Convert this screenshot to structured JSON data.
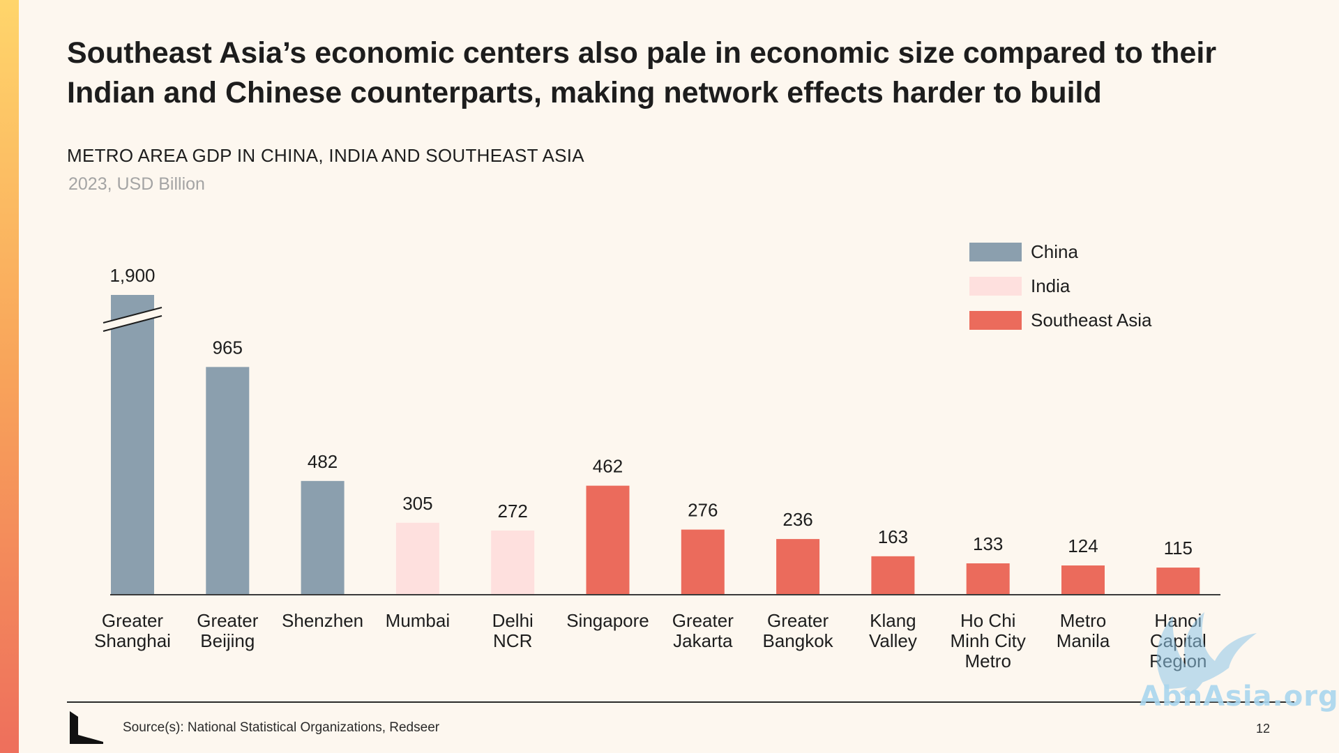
{
  "slide": {
    "title": "Southeast Asia’s economic centers also pale in economic size compared to their Indian and Chinese counterparts, making network effects harder to build",
    "source": "Source(s): National Statistical Organizations, Redseer",
    "page_number": "12"
  },
  "watermark": {
    "text": "AbnAsia.org"
  },
  "colors": {
    "china": "#8b9fae",
    "india": "#fee0de",
    "southeast_asia": "#eb6b5c",
    "background": "#fdf7ef",
    "axis": "#3a3a3a"
  },
  "chart_data": {
    "type": "bar",
    "title": "METRO AREA GDP IN CHINA, INDIA AND SOUTHEAST ASIA",
    "subtitle": "2023, USD Billion",
    "xlabel": "",
    "ylabel": "",
    "axis_break": true,
    "axis_break_category_index": 0,
    "legend_position": "top-right",
    "grid": false,
    "legend": [
      {
        "name": "China",
        "color": "#8b9fae"
      },
      {
        "name": "India",
        "color": "#fee0de"
      },
      {
        "name": "Southeast Asia",
        "color": "#eb6b5c"
      }
    ],
    "categories": [
      [
        "Greater",
        "Shanghai"
      ],
      [
        "Greater",
        "Beijing"
      ],
      [
        "Shenzhen"
      ],
      [
        "Mumbai"
      ],
      [
        "Delhi",
        "NCR"
      ],
      [
        "Singapore"
      ],
      [
        "Greater",
        "Jakarta"
      ],
      [
        "Greater",
        "Bangkok"
      ],
      [
        "Klang",
        "Valley"
      ],
      [
        "Ho Chi",
        "Minh City",
        "Metro"
      ],
      [
        "Metro",
        "Manila"
      ],
      [
        "Hanoi",
        "Capital",
        "Region"
      ]
    ],
    "values": [
      1900,
      965,
      482,
      305,
      272,
      462,
      276,
      236,
      163,
      133,
      124,
      115
    ],
    "value_labels": [
      "1,900",
      "965",
      "482",
      "305",
      "272",
      "462",
      "276",
      "236",
      "163",
      "133",
      "124",
      "115"
    ],
    "groups": [
      "China",
      "China",
      "China",
      "India",
      "India",
      "Southeast Asia",
      "Southeast Asia",
      "Southeast Asia",
      "Southeast Asia",
      "Southeast Asia",
      "Southeast Asia",
      "Southeast Asia"
    ]
  }
}
